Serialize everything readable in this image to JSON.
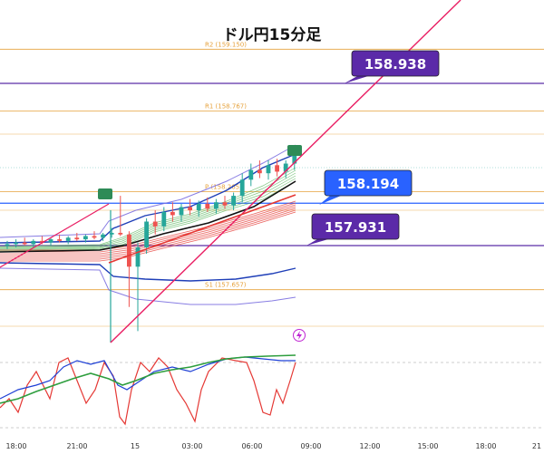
{
  "title": "ドル円15分足",
  "colors": {
    "pivot": "#e6a23c",
    "price_line_blue": "#2962ff",
    "price_line_purple": "#5a2ea6",
    "callout_blue": "#2962ff",
    "callout_purple": "#5b2aa8",
    "trendline": "#e91e63",
    "candle_up": "#26a69a",
    "candle_down": "#ef5350",
    "ma_dark": "#111111",
    "bb_outer": "#7b6fe0",
    "bb_inner": "#1f3fb8",
    "osc_red": "#e53935",
    "osc_blue": "#1e40d6",
    "osc_green": "#2e9e3e"
  },
  "chart_data": {
    "type": "candlestick",
    "title": "ドル円15分足",
    "y_range": [
      157.3,
      159.3
    ],
    "pivots": [
      {
        "label": "R2 (159.150)",
        "value": 159.15
      },
      {
        "label": "R1 (158.767)",
        "value": 158.767
      },
      {
        "label": "P (158.265)",
        "value": 158.265
      },
      {
        "label": "S1 (157.657)",
        "value": 157.657
      }
    ],
    "callouts": [
      {
        "label": "158.938",
        "value": 158.938,
        "color": "purple"
      },
      {
        "label": "158.194",
        "value": 158.194,
        "color": "blue"
      },
      {
        "label": "157.931",
        "value": 157.931,
        "color": "purple"
      }
    ],
    "x_ticks": [
      "18:00",
      "21:00",
      "15",
      "03:00",
      "06:00",
      "09:00",
      "12:00",
      "15:00",
      "18:00",
      "21"
    ],
    "candles_approx": [
      {
        "t": 0,
        "o": 157.93,
        "h": 157.96,
        "l": 157.91,
        "c": 157.94
      },
      {
        "t": 1,
        "o": 157.94,
        "h": 157.97,
        "l": 157.92,
        "c": 157.95
      },
      {
        "t": 2,
        "o": 157.95,
        "h": 157.98,
        "l": 157.93,
        "c": 157.94
      },
      {
        "t": 3,
        "o": 157.94,
        "h": 157.97,
        "l": 157.92,
        "c": 157.96
      },
      {
        "t": 4,
        "o": 157.96,
        "h": 157.99,
        "l": 157.94,
        "c": 157.95
      },
      {
        "t": 5,
        "o": 157.95,
        "h": 157.98,
        "l": 157.93,
        "c": 157.97
      },
      {
        "t": 6,
        "o": 157.97,
        "h": 158.0,
        "l": 157.95,
        "c": 157.96
      },
      {
        "t": 7,
        "o": 157.96,
        "h": 157.99,
        "l": 157.94,
        "c": 157.98
      },
      {
        "t": 8,
        "o": 157.98,
        "h": 158.01,
        "l": 157.96,
        "c": 157.97
      },
      {
        "t": 9,
        "o": 157.97,
        "h": 158.0,
        "l": 157.95,
        "c": 157.99
      },
      {
        "t": 10,
        "o": 157.99,
        "h": 158.02,
        "l": 157.97,
        "c": 157.98
      },
      {
        "t": 11,
        "o": 157.98,
        "h": 158.01,
        "l": 157.96,
        "c": 158.0
      },
      {
        "t": 12,
        "o": 158.0,
        "h": 158.04,
        "l": 157.98,
        "c": 158.01
      },
      {
        "t": 13,
        "o": 158.01,
        "h": 158.24,
        "l": 157.99,
        "c": 158.0
      },
      {
        "t": 14,
        "o": 158.0,
        "h": 158.02,
        "l": 157.55,
        "c": 157.8
      },
      {
        "t": 15,
        "o": 157.8,
        "h": 157.95,
        "l": 157.4,
        "c": 157.92
      },
      {
        "t": 16,
        "o": 157.92,
        "h": 158.1,
        "l": 157.88,
        "c": 158.08
      },
      {
        "t": 17,
        "o": 158.08,
        "h": 158.15,
        "l": 158.0,
        "c": 158.05
      },
      {
        "t": 18,
        "o": 158.05,
        "h": 158.17,
        "l": 158.02,
        "c": 158.14
      },
      {
        "t": 19,
        "o": 158.14,
        "h": 158.2,
        "l": 158.08,
        "c": 158.12
      },
      {
        "t": 20,
        "o": 158.12,
        "h": 158.19,
        "l": 158.08,
        "c": 158.17
      },
      {
        "t": 21,
        "o": 158.17,
        "h": 158.22,
        "l": 158.12,
        "c": 158.15
      },
      {
        "t": 22,
        "o": 158.15,
        "h": 158.21,
        "l": 158.11,
        "c": 158.19
      },
      {
        "t": 23,
        "o": 158.19,
        "h": 158.23,
        "l": 158.14,
        "c": 158.16
      },
      {
        "t": 24,
        "o": 158.16,
        "h": 158.22,
        "l": 158.13,
        "c": 158.2
      },
      {
        "t": 25,
        "o": 158.2,
        "h": 158.24,
        "l": 158.16,
        "c": 158.18
      },
      {
        "t": 26,
        "o": 158.18,
        "h": 158.26,
        "l": 158.15,
        "c": 158.24
      },
      {
        "t": 27,
        "o": 158.24,
        "h": 158.38,
        "l": 158.2,
        "c": 158.34
      },
      {
        "t": 28,
        "o": 158.34,
        "h": 158.44,
        "l": 158.3,
        "c": 158.4
      },
      {
        "t": 29,
        "o": 158.4,
        "h": 158.46,
        "l": 158.35,
        "c": 158.38
      },
      {
        "t": 30,
        "o": 158.38,
        "h": 158.46,
        "l": 158.34,
        "c": 158.43
      },
      {
        "t": 31,
        "o": 158.43,
        "h": 158.47,
        "l": 158.36,
        "c": 158.39
      },
      {
        "t": 32,
        "o": 158.39,
        "h": 158.46,
        "l": 158.35,
        "c": 158.44
      },
      {
        "t": 33,
        "o": 158.44,
        "h": 158.54,
        "l": 158.4,
        "c": 158.5
      }
    ]
  }
}
